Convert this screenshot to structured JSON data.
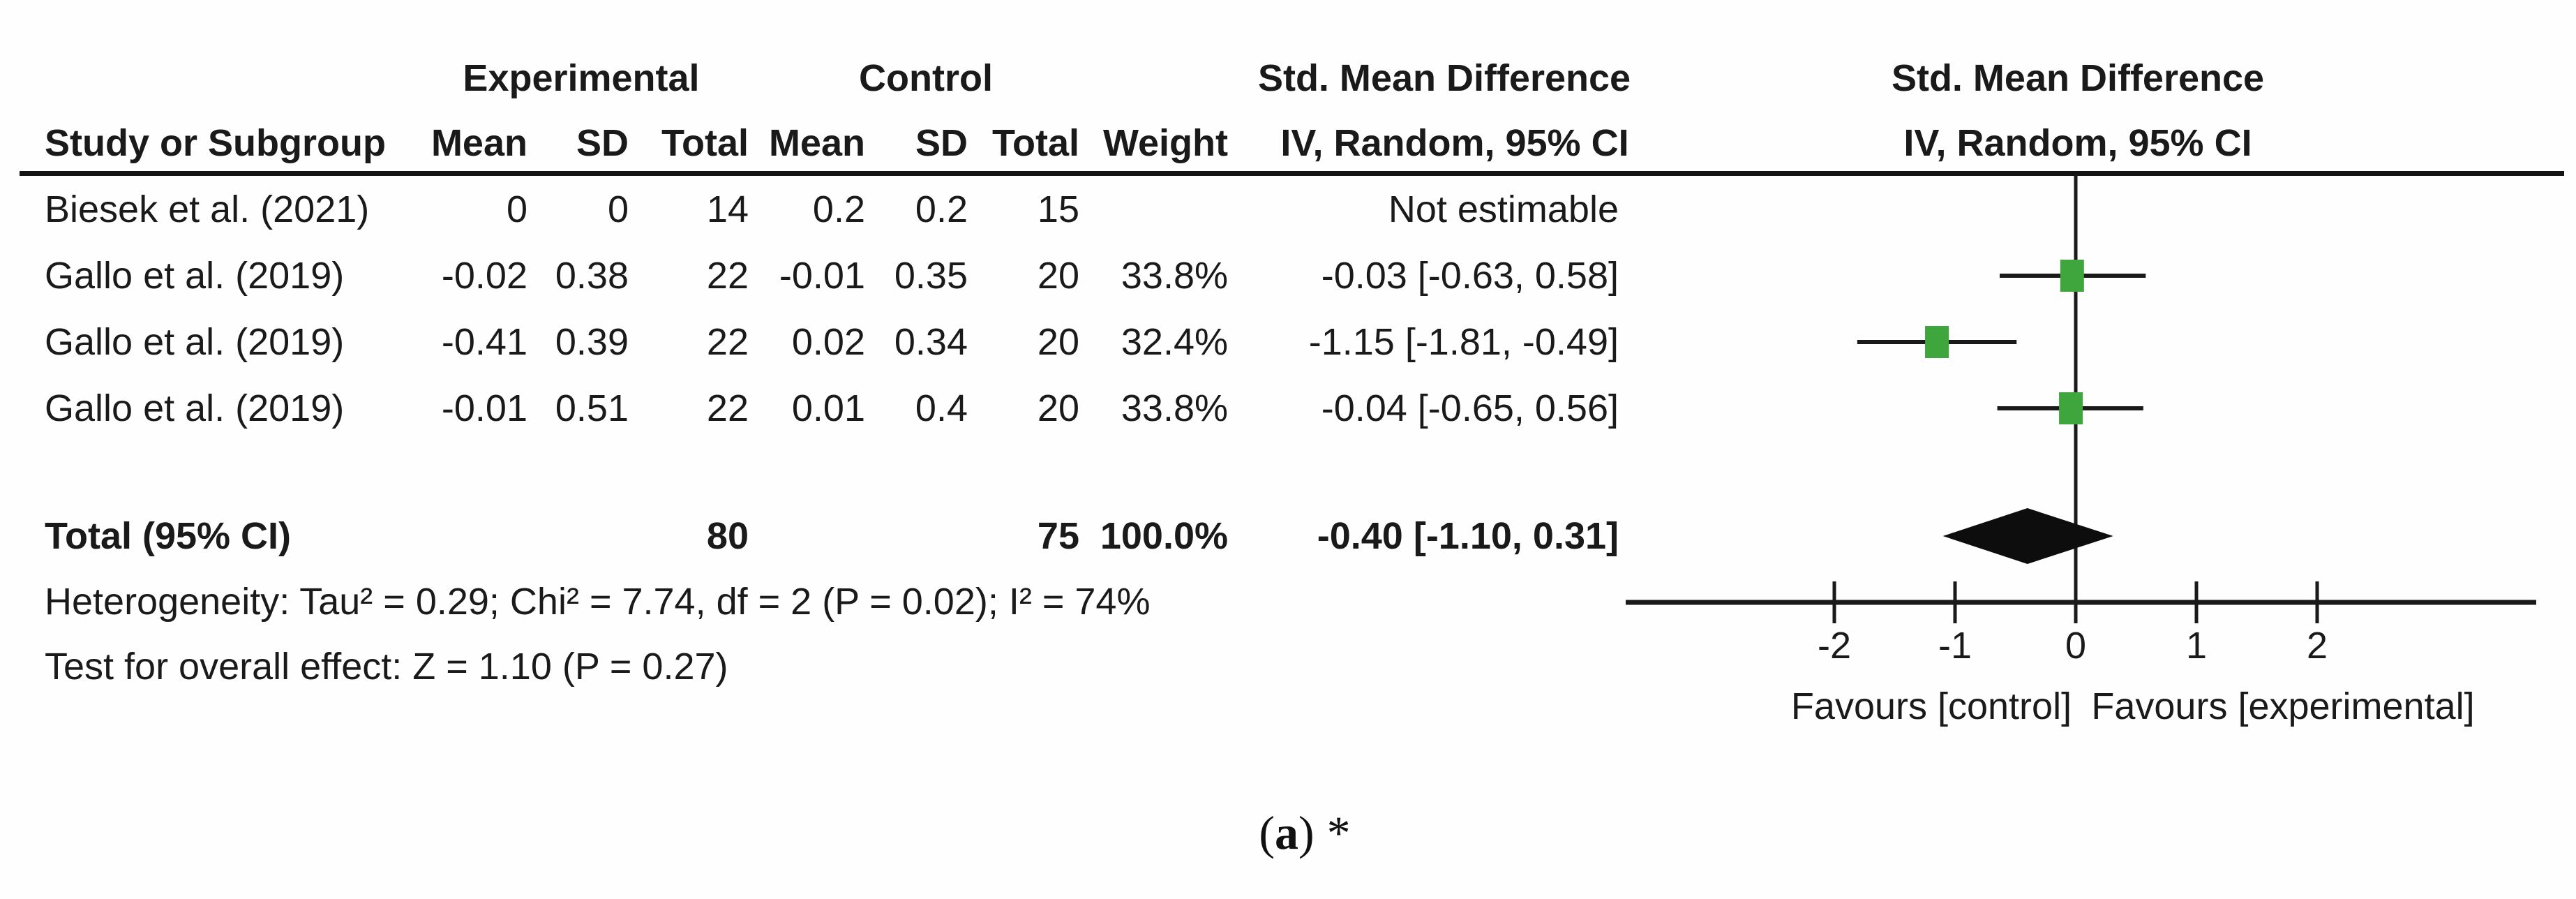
{
  "colors": {
    "square_green": "#3EA63C",
    "line_black": "#1a1a1a",
    "diamond_black": "#0d0d0d",
    "text": "#1a1a1a"
  },
  "table": {
    "group_headers": {
      "experimental": "Experimental",
      "control": "Control",
      "smd_left": "Std. Mean Difference",
      "smd_right": "Std. Mean Difference"
    },
    "col_headers": {
      "study": "Study or Subgroup",
      "mean": "Mean",
      "sd": "SD",
      "total": "Total",
      "mean2": "Mean",
      "sd2": "SD",
      "total2": "Total",
      "weight": "Weight",
      "ci": "IV, Random, 95% CI",
      "ci_right": "IV, Random, 95% CI"
    },
    "rows": [
      {
        "study": "Biesek et al. (2021)",
        "exp_mean": "0",
        "exp_sd": "0",
        "exp_total": "14",
        "ctl_mean": "0.2",
        "ctl_sd": "0.2",
        "ctl_total": "15",
        "weight": "",
        "ci": "Not estimable"
      },
      {
        "study": "Gallo et al. (2019)",
        "exp_mean": "-0.02",
        "exp_sd": "0.38",
        "exp_total": "22",
        "ctl_mean": "-0.01",
        "ctl_sd": "0.35",
        "ctl_total": "20",
        "weight": "33.8%",
        "ci": "-0.03 [-0.63, 0.58]"
      },
      {
        "study": "Gallo et al. (2019)",
        "exp_mean": "-0.41",
        "exp_sd": "0.39",
        "exp_total": "22",
        "ctl_mean": "0.02",
        "ctl_sd": "0.34",
        "ctl_total": "20",
        "weight": "32.4%",
        "ci": "-1.15 [-1.81, -0.49]"
      },
      {
        "study": "Gallo et al. (2019)",
        "exp_mean": "-0.01",
        "exp_sd": "0.51",
        "exp_total": "22",
        "ctl_mean": "0.01",
        "ctl_sd": "0.4",
        "ctl_total": "20",
        "weight": "33.8%",
        "ci": "-0.04 [-0.65, 0.56]"
      }
    ],
    "total_row": {
      "label": "Total (95% CI)",
      "exp_total": "80",
      "ctl_total": "75",
      "weight": "100.0%",
      "ci": "-0.40 [-1.10, 0.31]"
    },
    "footnotes": {
      "heterogeneity": "Heterogeneity: Tau² = 0.29; Chi² = 7.74, df = 2 (P = 0.02); I² = 74%",
      "overall_effect": "Test for overall effect: Z = 1.10 (P = 0.27)"
    }
  },
  "axis": {
    "ticks": [
      -2,
      -1,
      0,
      1,
      2
    ],
    "favours_left": "Favours [control]",
    "favours_right": "Favours [experimental]"
  },
  "caption": {
    "open": "(",
    "label": "a",
    "close": ")",
    "suffix": "*"
  },
  "chart_data": {
    "type": "forest",
    "title": "Std. Mean Difference — IV, Random, 95% CI",
    "x_ticks": [
      -2,
      -1,
      0,
      1,
      2
    ],
    "xlim": [
      -3.7,
      3.8
    ],
    "studies": [
      {
        "name": "Biesek et al. (2021)",
        "estimable": false,
        "smd": null,
        "ci": null,
        "weight_pct": null
      },
      {
        "name": "Gallo et al. (2019)",
        "estimable": true,
        "smd": -0.03,
        "ci": [
          -0.63,
          0.58
        ],
        "weight_pct": 33.8
      },
      {
        "name": "Gallo et al. (2019)",
        "estimable": true,
        "smd": -1.15,
        "ci": [
          -1.81,
          -0.49
        ],
        "weight_pct": 32.4
      },
      {
        "name": "Gallo et al. (2019)",
        "estimable": true,
        "smd": -0.04,
        "ci": [
          -0.65,
          0.56
        ],
        "weight_pct": 33.8
      }
    ],
    "total": {
      "smd": -0.4,
      "ci": [
        -1.1,
        0.31
      ],
      "n_experimental": 80,
      "n_control": 75
    },
    "heterogeneity": {
      "tau2": 0.29,
      "chi2": 7.74,
      "df": 2,
      "p": 0.02,
      "i2_pct": 74
    },
    "overall_effect": {
      "z": 1.1,
      "p": 0.27
    }
  }
}
